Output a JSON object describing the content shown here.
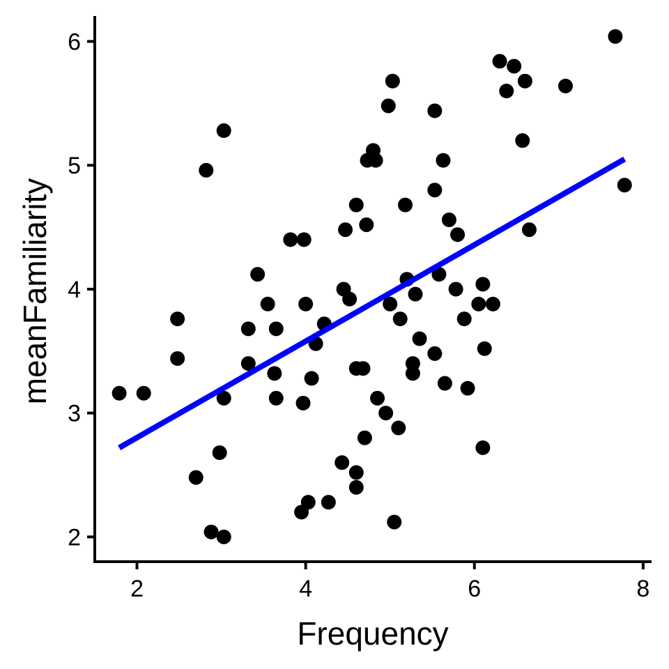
{
  "chart_data": {
    "type": "scatter",
    "title": "",
    "xlabel": "Frequency",
    "ylabel": "meanFamiliarity",
    "xlim": [
      1.5,
      8.1
    ],
    "ylim": [
      1.8,
      6.25
    ],
    "xticks": [
      2,
      4,
      6,
      8
    ],
    "yticks": [
      2,
      3,
      4,
      5,
      6
    ],
    "xtick_labels": [
      "2",
      "4",
      "6",
      "8"
    ],
    "ytick_labels": [
      "2",
      "3",
      "4",
      "5",
      "6"
    ],
    "grid": false,
    "legend": "none",
    "point_color": "#000000",
    "line_color": "#0000ff",
    "points": [
      [
        1.79,
        3.16
      ],
      [
        2.08,
        3.16
      ],
      [
        2.48,
        3.76
      ],
      [
        2.48,
        3.44
      ],
      [
        2.7,
        2.48
      ],
      [
        2.82,
        4.96
      ],
      [
        2.88,
        2.04
      ],
      [
        2.98,
        2.68
      ],
      [
        3.03,
        5.28
      ],
      [
        3.03,
        3.12
      ],
      [
        3.03,
        2.0
      ],
      [
        3.32,
        3.68
      ],
      [
        3.32,
        3.4
      ],
      [
        3.43,
        4.12
      ],
      [
        3.55,
        3.88
      ],
      [
        3.63,
        3.32
      ],
      [
        3.65,
        3.68
      ],
      [
        3.65,
        3.12
      ],
      [
        3.82,
        4.4
      ],
      [
        3.95,
        2.2
      ],
      [
        3.97,
        3.08
      ],
      [
        3.98,
        4.4
      ],
      [
        4.0,
        3.88
      ],
      [
        4.03,
        2.28
      ],
      [
        4.07,
        3.28
      ],
      [
        4.12,
        3.56
      ],
      [
        4.22,
        3.72
      ],
      [
        4.27,
        2.28
      ],
      [
        4.43,
        2.6
      ],
      [
        4.45,
        4.0
      ],
      [
        4.47,
        4.48
      ],
      [
        4.52,
        3.92
      ],
      [
        4.6,
        4.68
      ],
      [
        4.6,
        3.36
      ],
      [
        4.6,
        2.52
      ],
      [
        4.6,
        2.4
      ],
      [
        4.68,
        3.36
      ],
      [
        4.7,
        2.8
      ],
      [
        4.72,
        4.52
      ],
      [
        4.73,
        5.04
      ],
      [
        4.8,
        5.12
      ],
      [
        4.83,
        5.04
      ],
      [
        4.85,
        3.12
      ],
      [
        4.95,
        3.0
      ],
      [
        4.98,
        5.48
      ],
      [
        5.0,
        3.88
      ],
      [
        5.03,
        5.68
      ],
      [
        5.05,
        2.12
      ],
      [
        5.1,
        2.88
      ],
      [
        5.12,
        3.76
      ],
      [
        5.18,
        4.68
      ],
      [
        5.2,
        4.08
      ],
      [
        5.27,
        3.4
      ],
      [
        5.27,
        3.32
      ],
      [
        5.3,
        3.96
      ],
      [
        5.35,
        3.6
      ],
      [
        5.53,
        5.44
      ],
      [
        5.53,
        4.8
      ],
      [
        5.53,
        3.48
      ],
      [
        5.58,
        4.12
      ],
      [
        5.63,
        5.04
      ],
      [
        5.65,
        3.24
      ],
      [
        5.7,
        4.56
      ],
      [
        5.8,
        4.44
      ],
      [
        5.78,
        4.0
      ],
      [
        5.88,
        3.76
      ],
      [
        5.92,
        3.2
      ],
      [
        6.05,
        3.88
      ],
      [
        6.1,
        4.04
      ],
      [
        6.1,
        2.72
      ],
      [
        6.12,
        3.52
      ],
      [
        6.22,
        3.88
      ],
      [
        6.3,
        5.84
      ],
      [
        6.38,
        5.6
      ],
      [
        6.47,
        5.8
      ],
      [
        6.57,
        5.2
      ],
      [
        6.6,
        5.68
      ],
      [
        6.65,
        4.48
      ],
      [
        7.08,
        5.64
      ],
      [
        7.67,
        6.04
      ],
      [
        7.78,
        4.84
      ]
    ],
    "regression_line": {
      "x": [
        1.79,
        7.78
      ],
      "y": [
        2.72,
        5.05
      ]
    }
  }
}
